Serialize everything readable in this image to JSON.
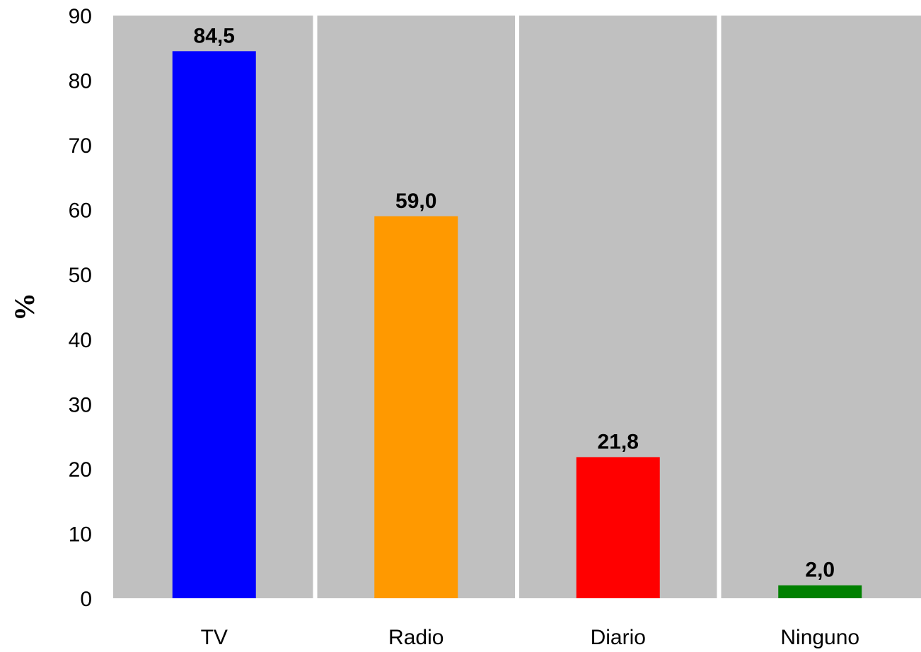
{
  "chart_data": {
    "type": "bar",
    "categories": [
      "TV",
      "Radio",
      "Diario",
      "Ninguno"
    ],
    "values": [
      84.5,
      59.0,
      21.8,
      2.0
    ],
    "value_labels": [
      "84,5",
      "59,0",
      "21,8",
      "2,0"
    ],
    "bar_colors": [
      "#0000ff",
      "#ff9900",
      "#ff0000",
      "#008000"
    ],
    "plot_background": "#c0c0c0",
    "separator_color": "#ffffff",
    "title": "",
    "xlabel": "",
    "ylabel": "%",
    "ylim": [
      0,
      90
    ],
    "yticks": [
      0,
      10,
      20,
      30,
      40,
      50,
      60,
      70,
      80,
      90
    ],
    "ytick_labels": [
      "0",
      "10",
      "20",
      "30",
      "40",
      "50",
      "60",
      "70",
      "80",
      "90"
    ],
    "grid": false,
    "legend": "none"
  }
}
